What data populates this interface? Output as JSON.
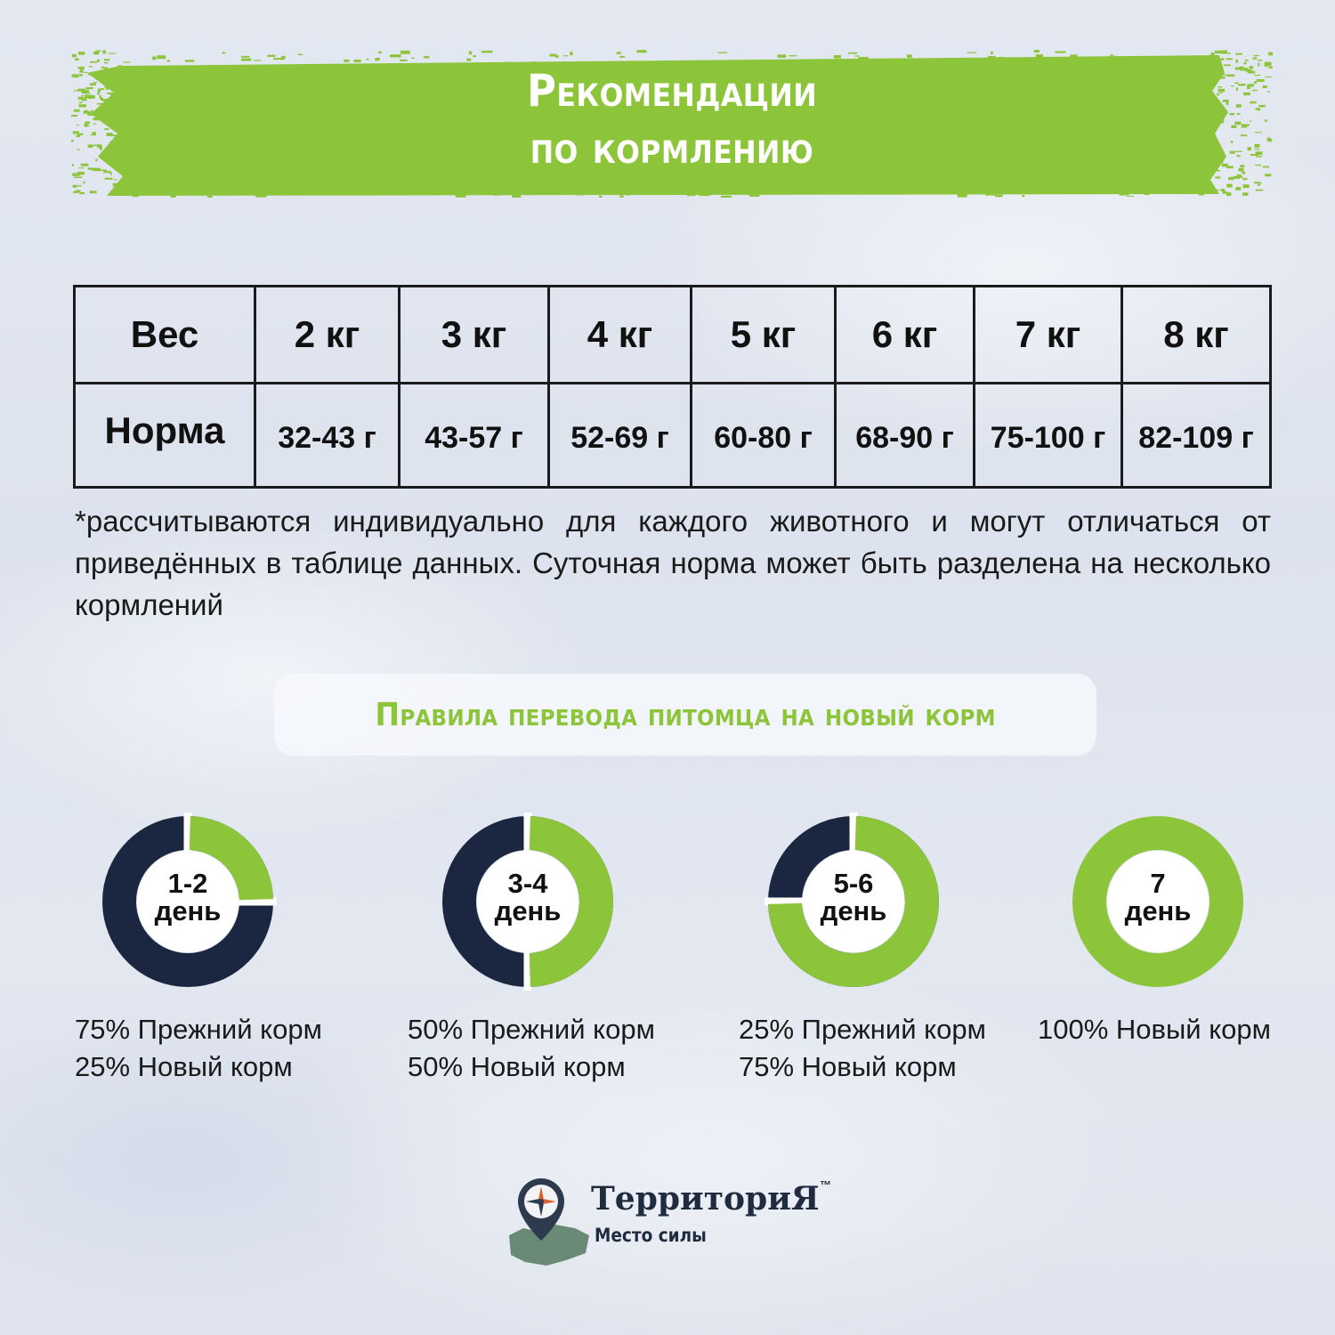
{
  "header": {
    "title_line1": "Рекомендации",
    "title_line2": "по кормлению"
  },
  "table": {
    "row_weight_label": "Вес",
    "row_norm_label": "Норма",
    "weights": [
      "2 кг",
      "3 кг",
      "4 кг",
      "5 кг",
      "6 кг",
      "7 кг",
      "8 кг"
    ],
    "norms": [
      "32-43 г",
      "43-57 г",
      "52-69 г",
      "60-80 г",
      "68-90 г",
      "75-100 г",
      "82-109 г"
    ]
  },
  "note": "*рассчитываются индивидуально для каждого животного и могут отличаться от приведённых в таблице данных. Суточная норма может быть разделена на несколько кормлений",
  "transition": {
    "title": "Правила перевода питомца на новый корм",
    "stages": [
      {
        "day_num": "1-2",
        "day_word": "день",
        "new_fraction": 0.25,
        "line1": "75% Прежний корм",
        "line2": "25% Новый корм"
      },
      {
        "day_num": "3-4",
        "day_word": "день",
        "new_fraction": 0.5,
        "line1": "50% Прежний корм",
        "line2": "50% Новый корм"
      },
      {
        "day_num": "5-6",
        "day_word": "день",
        "new_fraction": 0.75,
        "line1": "25% Прежний корм",
        "line2": "75% Новый корм"
      },
      {
        "day_num": "7",
        "day_word": "день",
        "new_fraction": 1.0,
        "line1": "100% Новый корм",
        "line2": ""
      }
    ]
  },
  "colors": {
    "green": "#8cc43a",
    "navy": "#1b2740",
    "background": "#e0e6ef"
  },
  "brand": {
    "name": "ТерриториЯ",
    "trademark": "™",
    "tagline": "Место силы",
    "icon": "compass-map-pin-icon"
  }
}
